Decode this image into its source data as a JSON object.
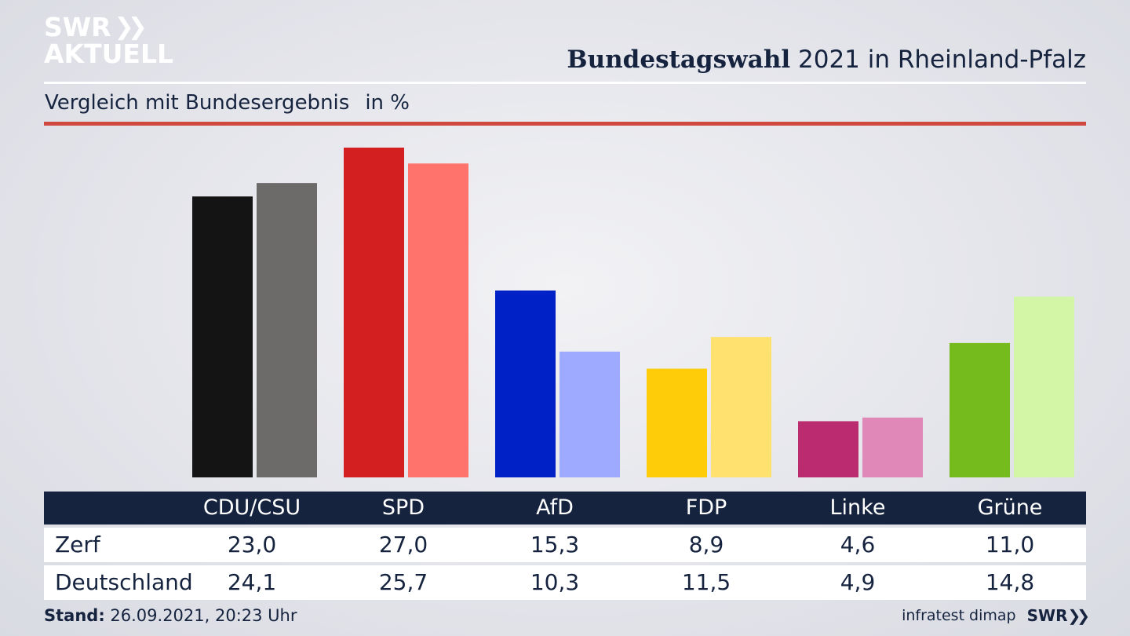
{
  "logo": {
    "line1": "SWR",
    "chevrons": "❯❯",
    "line2": "AKTUELL"
  },
  "header": {
    "title_bold": "Bundestagswahl",
    "title_rest": " 2021 in Rheinland-Pfalz",
    "subtitle": "Vergleich mit Bundesergebnis",
    "unit": "in %"
  },
  "chart_data": {
    "type": "bar",
    "categories": [
      "CDU/CSU",
      "SPD",
      "AfD",
      "FDP",
      "Linke",
      "Grüne"
    ],
    "series": [
      {
        "name": "Zerf",
        "values": [
          23.0,
          27.0,
          15.3,
          8.9,
          4.6,
          11.0
        ],
        "colors": [
          "#141414",
          "#d41f21",
          "#0021c6",
          "#ffcc0a",
          "#bb2b6f",
          "#76bb1e"
        ]
      },
      {
        "name": "Deutschland",
        "values": [
          24.1,
          25.7,
          10.3,
          11.5,
          4.9,
          14.8
        ],
        "colors": [
          "#6d6b69",
          "#ff736c",
          "#9eaaff",
          "#fee16f",
          "#e088b8",
          "#d3f5a6"
        ]
      }
    ],
    "ylim": [
      0,
      27.0
    ],
    "grid": false,
    "legend": "table-below"
  },
  "table": {
    "headers": [
      "CDU/CSU",
      "SPD",
      "AfD",
      "FDP",
      "Linke",
      "Grüne"
    ],
    "rows": [
      {
        "label": "Zerf",
        "values": [
          "23,0",
          "27,0",
          "15,3",
          "8,9",
          "4,6",
          "11,0"
        ]
      },
      {
        "label": "Deutschland",
        "values": [
          "24,1",
          "25,7",
          "10,3",
          "11,5",
          "4,9",
          "14,8"
        ]
      }
    ]
  },
  "footer": {
    "stand_label": "Stand:",
    "stand_value": " 26.09.2021, 20:23 Uhr",
    "source": "infratest dimap",
    "brand": "SWR",
    "brand_chevrons": "❯❯"
  }
}
